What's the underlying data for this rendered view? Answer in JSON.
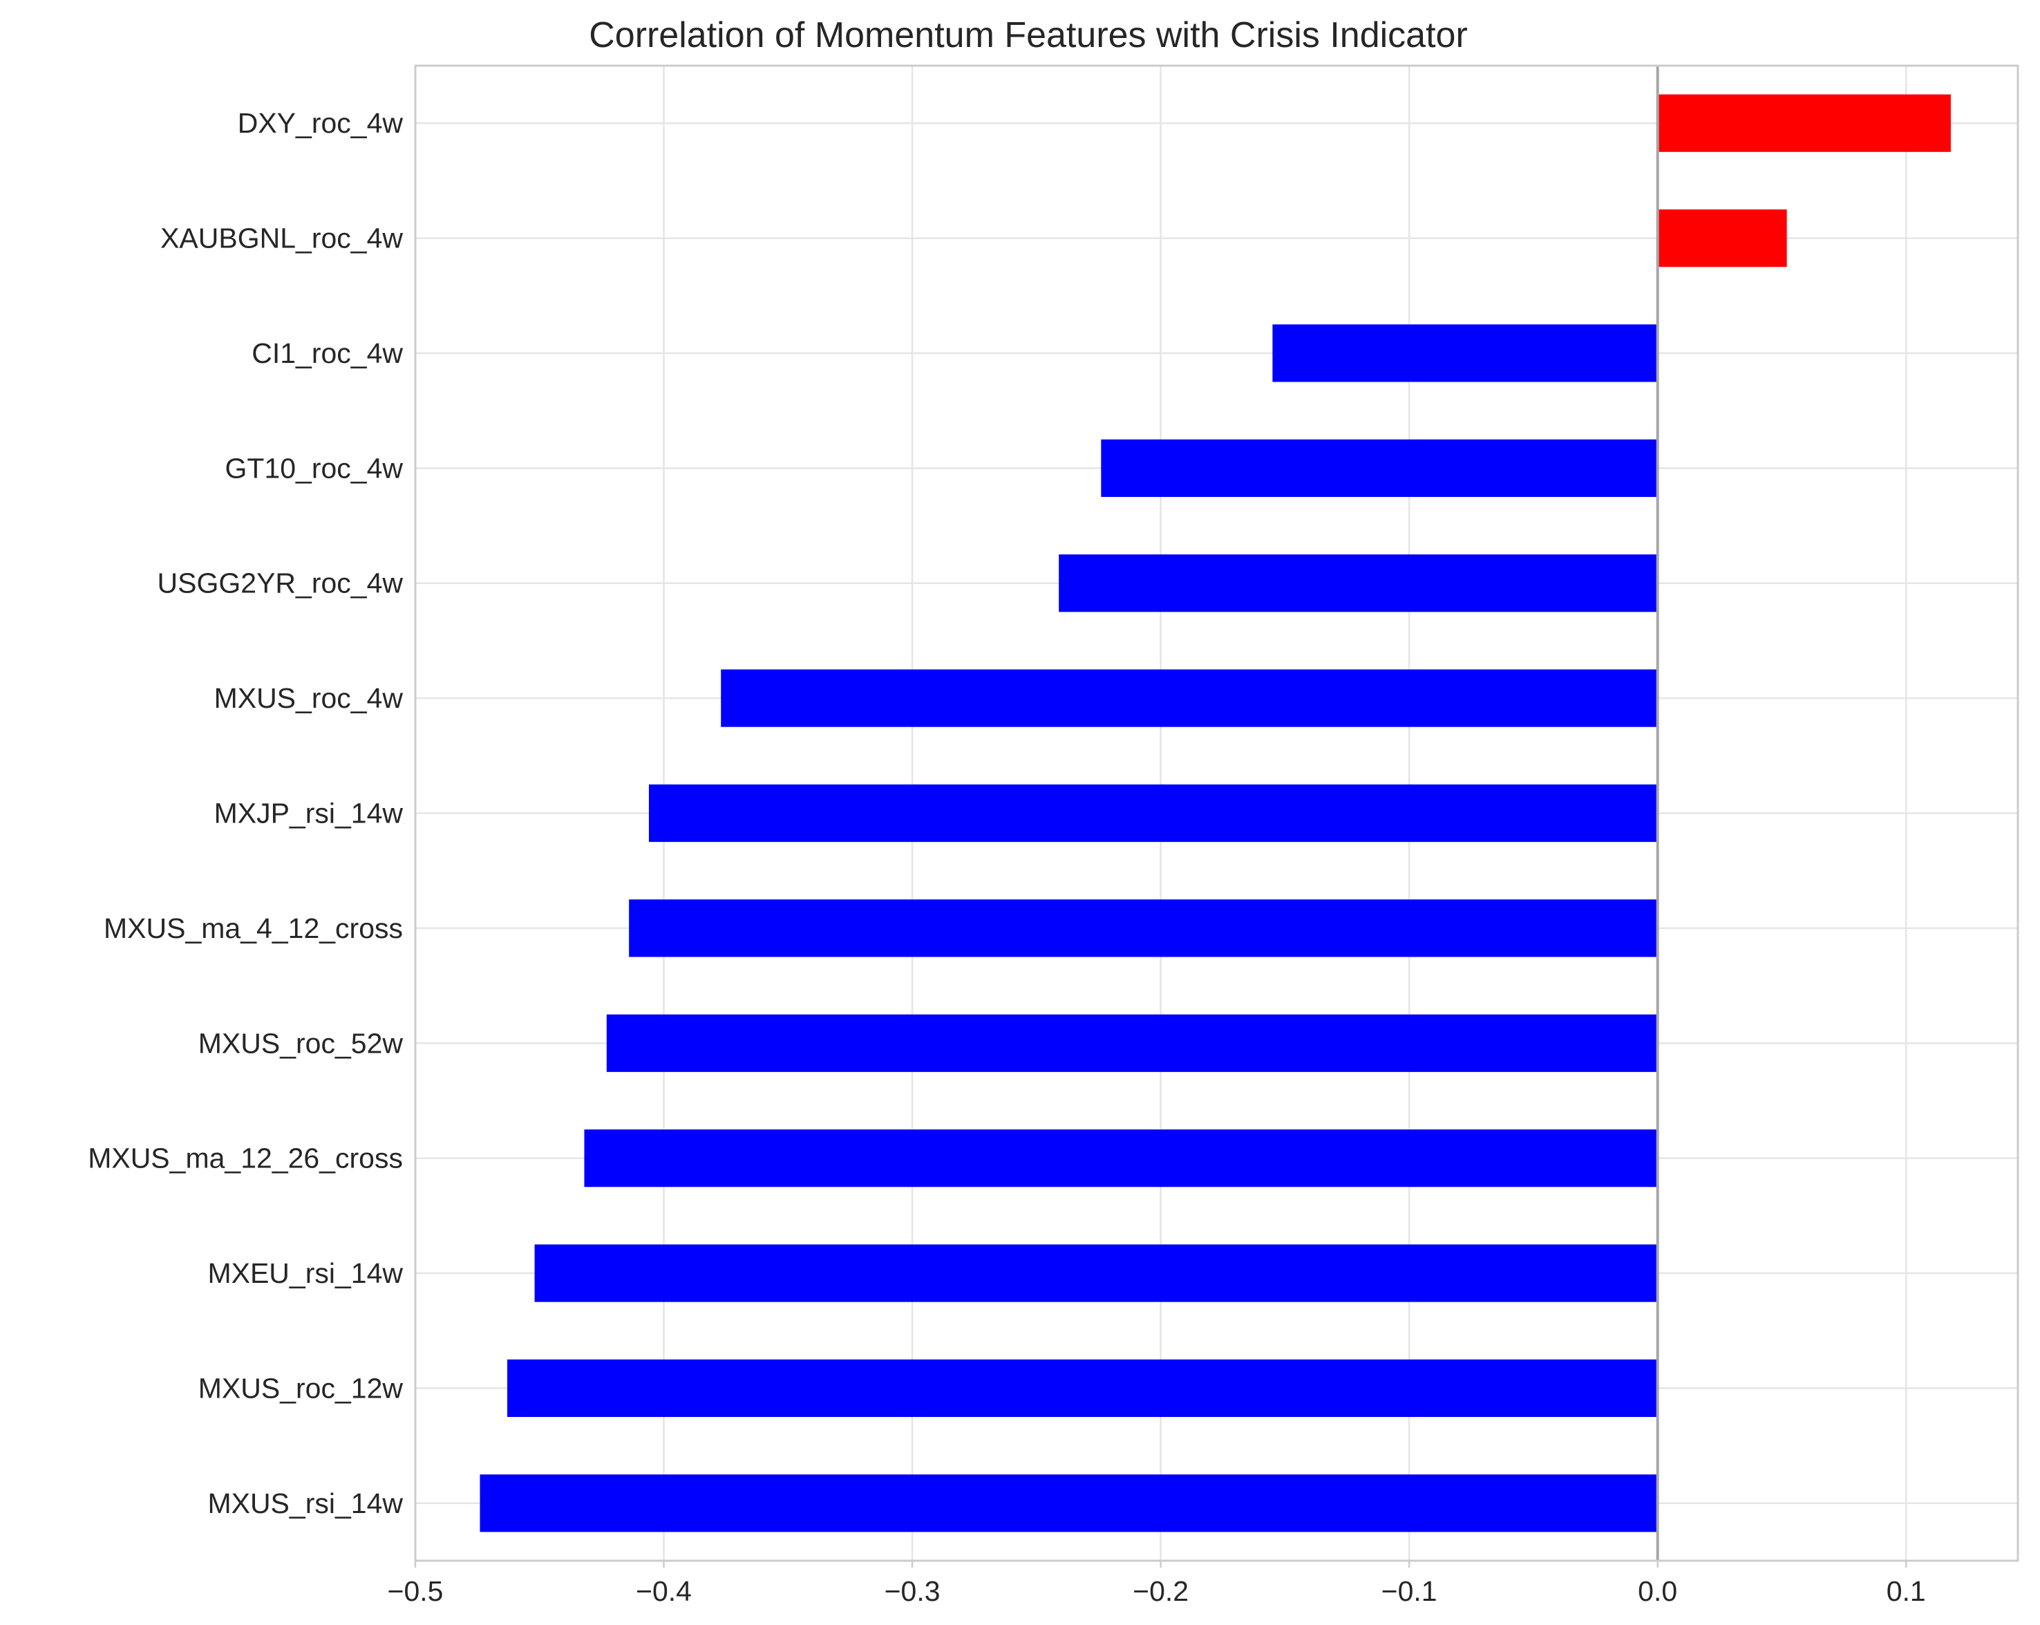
{
  "chart_data": {
    "type": "bar",
    "orientation": "horizontal",
    "title": "Correlation of Momentum Features with Crisis Indicator",
    "xlabel": "",
    "ylabel": "",
    "xlim": [
      -0.5,
      0.145
    ],
    "xticks": [
      -0.5,
      -0.4,
      -0.3,
      -0.2,
      -0.1,
      0.0,
      0.1
    ],
    "xtick_labels": [
      "−0.5",
      "−0.4",
      "−0.3",
      "−0.2",
      "−0.1",
      "0.0",
      "0.1"
    ],
    "grid": true,
    "legend": "none",
    "zero_line": true,
    "colors": {
      "positive": "#ff0000",
      "negative": "#0000ff",
      "grid": "#e5e5e5",
      "frame": "#cccccc",
      "zero_line": "#a6a6a6",
      "text": "#262626"
    },
    "categories": [
      "DXY_roc_4w",
      "XAUBGNL_roc_4w",
      "CI1_roc_4w",
      "GT10_roc_4w",
      "USGG2YR_roc_4w",
      "MXUS_roc_4w",
      "MXJP_rsi_14w",
      "MXUS_ma_4_12_cross",
      "MXUS_roc_52w",
      "MXUS_ma_12_26_cross",
      "MXEU_rsi_14w",
      "MXUS_roc_12w",
      "MXUS_rsi_14w"
    ],
    "values": [
      0.118,
      0.052,
      -0.155,
      -0.224,
      -0.241,
      -0.377,
      -0.406,
      -0.414,
      -0.423,
      -0.432,
      -0.452,
      -0.463,
      -0.474
    ]
  }
}
